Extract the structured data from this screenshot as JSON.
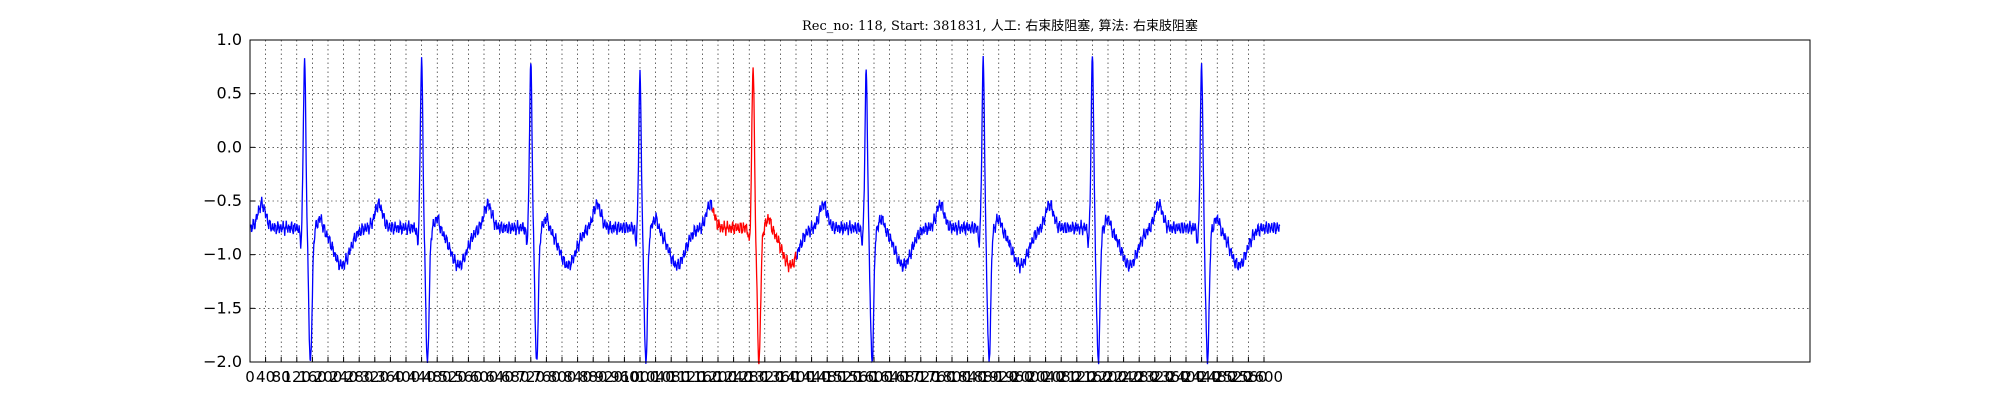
{
  "chart_data": {
    "type": "line",
    "title": "Rec_no: 118, Start: 381831, 人工: 右束肢阻塞, 算法: 右束肢阻塞",
    "xlabel": "",
    "ylabel": "",
    "xlim": [
      0,
      4000
    ],
    "ylim": [
      -2.0,
      1.0
    ],
    "grid": true,
    "y_ticks": [
      1.0,
      0.5,
      0.0,
      -0.5,
      -1.0,
      -1.5,
      -2.0
    ],
    "y_tick_labels": [
      "1.0",
      "0.5",
      "0.0",
      "−0.5",
      "−1.0",
      "−1.5",
      "−2.0"
    ],
    "x_ticks": [
      0,
      40,
      80,
      120,
      160,
      200,
      240,
      280,
      320,
      360,
      400,
      440,
      480,
      520,
      560,
      600,
      640,
      680,
      720,
      760,
      800,
      840,
      880,
      920,
      960,
      1000,
      1040,
      1080,
      1120,
      1160,
      1200,
      1240,
      1280,
      1320,
      1360,
      1400,
      1440,
      1480,
      1520,
      1560,
      1600,
      1640,
      1680,
      1720,
      1760,
      1800,
      1840,
      1880,
      1920,
      1960,
      2000,
      2040,
      2080,
      2120,
      2160,
      2200,
      2240,
      2280,
      2320,
      2360,
      2400,
      2440,
      2480,
      2520,
      2560,
      2600
    ],
    "x_tick_labels": [
      "0",
      "40",
      "80",
      "120",
      "160",
      "200",
      "240",
      "280",
      "320",
      "360",
      "400",
      "440",
      "480",
      "520",
      "560",
      "600",
      "640",
      "680",
      "720",
      "760",
      "800",
      "840",
      "880",
      "920",
      "960",
      "1000",
      "1040",
      "1080",
      "1120",
      "1160",
      "1200",
      "1240",
      "1280",
      "1320",
      "1360",
      "1400",
      "1440",
      "1480",
      "1520",
      "1560",
      "1600",
      "1640",
      "1680",
      "1720",
      "1760",
      "1800",
      "1840",
      "1880",
      "1920",
      "1960",
      "2000",
      "2040",
      "2080",
      "2120",
      "2160",
      "2200",
      "2240",
      "2280",
      "2320",
      "2360",
      "2400",
      "2440",
      "2480",
      "2520",
      "2560",
      "2600"
    ],
    "series": [
      {
        "color": "#0000ff",
        "beats": [
          {
            "r_x": 140,
            "amp": 0.66
          },
          {
            "r_x": 440,
            "amp": 0.65
          },
          {
            "r_x": 720,
            "amp": 0.62
          },
          {
            "r_x": 1000,
            "amp": 0.5
          },
          {
            "r_x": 1580,
            "amp": 0.54
          },
          {
            "r_x": 1880,
            "amp": 0.65
          },
          {
            "r_x": 2160,
            "amp": 0.7
          },
          {
            "r_x": 2440,
            "amp": 0.62
          }
        ],
        "x_range": [
          0,
          2640
        ]
      },
      {
        "color": "#ff0000",
        "beats": [
          {
            "r_x": 1290,
            "amp": 0.6
          }
        ],
        "x_range": [
          1185,
          1400
        ]
      }
    ],
    "baseline": -0.75
  }
}
